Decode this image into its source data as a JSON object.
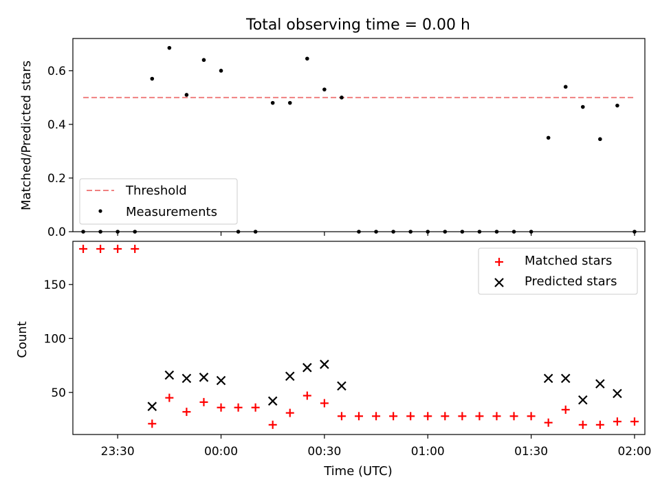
{
  "figure": {
    "title": "Total observing time = 0.00 h",
    "xlabel": "Time (UTC)"
  },
  "chart_data": [
    {
      "type": "scatter",
      "ylabel": "Matched/Predicted stars",
      "xlim": [
        "23:17",
        "02:03"
      ],
      "ylim": [
        0,
        0.72
      ],
      "y_ticks": [
        0.0,
        0.2,
        0.4,
        0.6
      ],
      "y_tick_labels": [
        "0.0",
        "0.2",
        "0.4",
        "0.6"
      ],
      "legend_position": "lower-left",
      "threshold": {
        "name": "Threshold",
        "value": 0.5,
        "x_range": [
          "23:20",
          "02:00"
        ],
        "color": "#f08080"
      },
      "series": [
        {
          "name": "Measurements",
          "color": "#000000",
          "x": [
            "23:20",
            "23:25",
            "23:30",
            "23:35",
            "23:40",
            "23:45",
            "23:50",
            "23:55",
            "00:00",
            "00:05",
            "00:10",
            "00:15",
            "00:20",
            "00:25",
            "00:30",
            "00:35",
            "00:40",
            "00:45",
            "00:50",
            "00:55",
            "01:00",
            "01:05",
            "01:10",
            "01:15",
            "01:20",
            "01:25",
            "01:30",
            "01:35",
            "01:40",
            "01:45",
            "01:50",
            "01:55",
            "02:00"
          ],
          "y": [
            0,
            0,
            0,
            0,
            0.57,
            0.685,
            0.51,
            0.64,
            0.6,
            0,
            0,
            0.48,
            0.48,
            0.645,
            0.53,
            0.5,
            0,
            0,
            0,
            0,
            0,
            0,
            0,
            0,
            0,
            0,
            0,
            0.35,
            0.54,
            0.465,
            0.345,
            0.47,
            0
          ]
        }
      ]
    },
    {
      "type": "scatter",
      "ylabel": "Count",
      "xlim": [
        "23:17",
        "02:03"
      ],
      "ylim": [
        11,
        190
      ],
      "y_ticks": [
        50,
        100,
        150
      ],
      "y_tick_labels": [
        "50",
        "100",
        "150"
      ],
      "x_ticks": [
        "23:30",
        "00:00",
        "00:30",
        "01:00",
        "01:30",
        "02:00"
      ],
      "x_tick_labels": [
        "23:30",
        "00:00",
        "00:30",
        "01:00",
        "01:30",
        "02:00"
      ],
      "legend_position": "upper-right",
      "series": [
        {
          "name": "Matched stars",
          "marker": "plus",
          "color": "#ff0000",
          "x": [
            "23:20",
            "23:25",
            "23:30",
            "23:35",
            "23:40",
            "23:45",
            "23:50",
            "23:55",
            "00:00",
            "00:05",
            "00:10",
            "00:15",
            "00:20",
            "00:25",
            "00:30",
            "00:35",
            "00:40",
            "00:45",
            "00:50",
            "00:55",
            "01:00",
            "01:05",
            "01:10",
            "01:15",
            "01:20",
            "01:25",
            "01:30",
            "01:35",
            "01:40",
            "01:45",
            "01:50",
            "01:55",
            "02:00"
          ],
          "y": [
            183,
            183,
            183,
            183,
            21,
            45,
            32,
            41,
            36,
            36,
            36,
            20,
            31,
            47,
            40,
            28,
            28,
            28,
            28,
            28,
            28,
            28,
            28,
            28,
            28,
            28,
            28,
            22,
            34,
            20,
            20,
            23,
            23
          ]
        },
        {
          "name": "Predicted stars",
          "marker": "x",
          "color": "#000000",
          "x": [
            "23:40",
            "23:45",
            "23:50",
            "23:55",
            "00:00",
            "00:15",
            "00:20",
            "00:25",
            "00:30",
            "00:35",
            "01:35",
            "01:40",
            "01:45",
            "01:50",
            "01:55"
          ],
          "y": [
            37,
            66,
            63,
            64,
            61,
            42,
            65,
            73,
            76,
            56,
            63,
            63,
            43,
            58,
            49
          ]
        }
      ]
    }
  ]
}
